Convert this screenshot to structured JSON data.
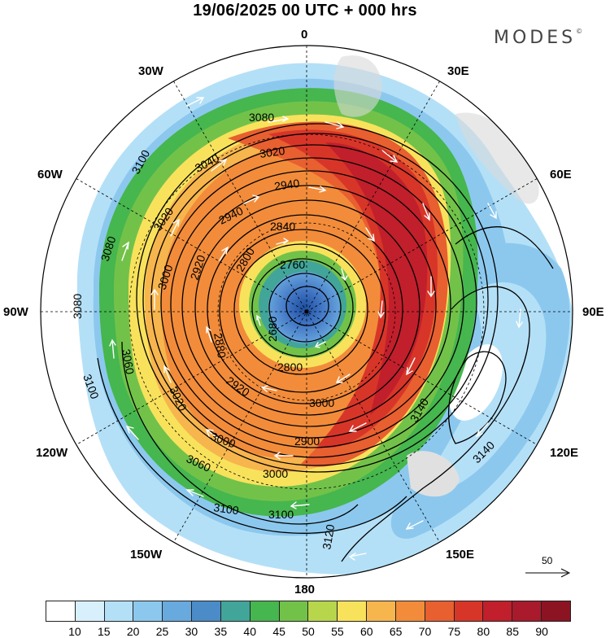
{
  "title": "19/06/2025  00 UTC  + 000 hrs",
  "brand": "MODES",
  "brand_mark": "©",
  "longitude_labels": {
    "lon_0": "0",
    "lon_30w": "30W",
    "lon_30e": "30E",
    "lon_60w": "60W",
    "lon_60e": "60E",
    "lon_90w": "90W",
    "lon_90e": "90E",
    "lon_120w": "120W",
    "lon_120e": "120E",
    "lon_150w": "150W",
    "lon_150e": "150E",
    "lon_180": "180"
  },
  "contour_labels": [
    "3080",
    "3100",
    "3040",
    "3020",
    "2940",
    "2940",
    "3020",
    "2840",
    "3080",
    "3000",
    "2920",
    "2800",
    "2760",
    "3080",
    "3100",
    "2680",
    "2880",
    "3060",
    "3020",
    "2920",
    "2800",
    "3000",
    "3000",
    "2900",
    "3000",
    "3060",
    "3100",
    "3100",
    "3120",
    "3140",
    "3140"
  ],
  "wind_reference": {
    "value": "50"
  },
  "colorbar": {
    "colors": [
      "#ffffff",
      "#d7f0fb",
      "#b4e0f7",
      "#8cc8ee",
      "#68a9de",
      "#4b8cc8",
      "#42a59a",
      "#46b64e",
      "#72c24a",
      "#b7d64b",
      "#f8e25c",
      "#f7b54d",
      "#f28c3a",
      "#e85f30",
      "#d83529",
      "#c11f2b",
      "#a81a2c",
      "#8c1422"
    ],
    "ticks": [
      "10",
      "15",
      "20",
      "25",
      "30",
      "35",
      "40",
      "45",
      "50",
      "55",
      "60",
      "65",
      "70",
      "75",
      "80",
      "85",
      "90"
    ]
  }
}
